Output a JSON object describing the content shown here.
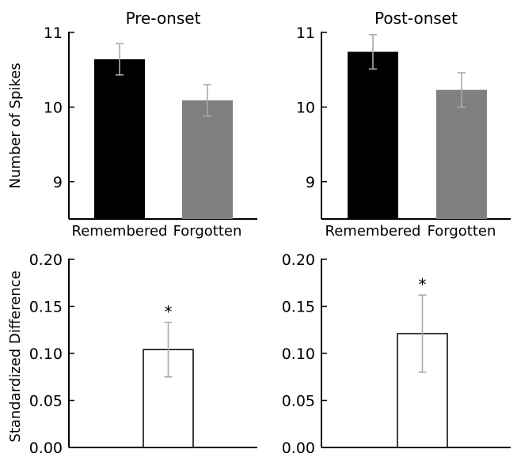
{
  "colors": {
    "background": "#ffffff",
    "axis": "#000000",
    "remembered_bar": "#000000",
    "forgotten_bar": "#808080",
    "difference_bar_fill": "#ffffff",
    "difference_bar_edge": "#000000",
    "error_bar": "#a9a9a9"
  },
  "chart_data": [
    {
      "type": "bar",
      "title": "Pre-onset",
      "ylabel": "Number of Spikes",
      "categories": [
        "Remembered",
        "Forgotten"
      ],
      "values": [
        10.64,
        10.09
      ],
      "errors": [
        0.21,
        0.21
      ],
      "bar_colors": [
        "#000000",
        "#808080"
      ],
      "ylim": [
        8.5,
        11.0
      ],
      "yticks": [
        9,
        10,
        11
      ],
      "ytick_labels": [
        "9",
        "10",
        "11"
      ],
      "grid": false
    },
    {
      "type": "bar",
      "title": "Post-onset",
      "ylabel": "",
      "categories": [
        "Remembered",
        "Forgotten"
      ],
      "values": [
        10.74,
        10.23
      ],
      "errors": [
        0.23,
        0.23
      ],
      "bar_colors": [
        "#000000",
        "#808080"
      ],
      "ylim": [
        8.5,
        11.0
      ],
      "yticks": [
        9,
        10,
        11
      ],
      "ytick_labels": [
        "9",
        "10",
        "11"
      ],
      "grid": false
    },
    {
      "type": "bar",
      "title": "",
      "ylabel": "Standardized Difference",
      "categories": [
        ""
      ],
      "values": [
        0.104
      ],
      "errors": [
        0.029
      ],
      "annotation": "*",
      "ylim": [
        0.0,
        0.2
      ],
      "yticks": [
        0.0,
        0.05,
        0.1,
        0.15,
        0.2
      ],
      "ytick_labels": [
        "0.00",
        "0.05",
        "0.10",
        "0.15",
        "0.20"
      ],
      "grid": false
    },
    {
      "type": "bar",
      "title": "",
      "ylabel": "",
      "categories": [
        ""
      ],
      "values": [
        0.121
      ],
      "errors": [
        0.041
      ],
      "annotation": "*",
      "ylim": [
        0.0,
        0.2
      ],
      "yticks": [
        0.0,
        0.05,
        0.1,
        0.15,
        0.2
      ],
      "ytick_labels": [
        "0.00",
        "0.05",
        "0.10",
        "0.15",
        "0.20"
      ],
      "grid": false
    }
  ]
}
